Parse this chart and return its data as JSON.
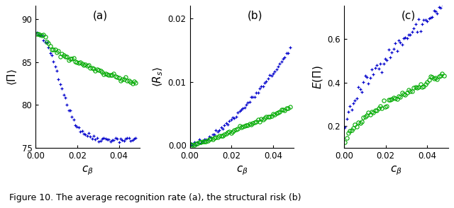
{
  "panels": [
    "(a)",
    "(b)",
    "(c)"
  ],
  "blue_color": "#0000CC",
  "green_color": "#00AA00",
  "yticks_a": [
    75,
    80,
    85,
    90
  ],
  "yticks_b": [
    0.0,
    0.01,
    0.02
  ],
  "yticks_c": [
    0.2,
    0.4,
    0.6
  ],
  "xticks": [
    0.0,
    0.02,
    0.04
  ],
  "xlim": [
    0,
    0.05
  ],
  "ylim_a": [
    75,
    91.5
  ],
  "ylim_b": [
    -0.0005,
    0.022
  ],
  "ylim_c": [
    0.1,
    0.75
  ],
  "n_points": 60,
  "figsize": [
    6.4,
    2.94
  ],
  "caption": "Figure 10. The average recognition rate (a), the structural risk (b)"
}
